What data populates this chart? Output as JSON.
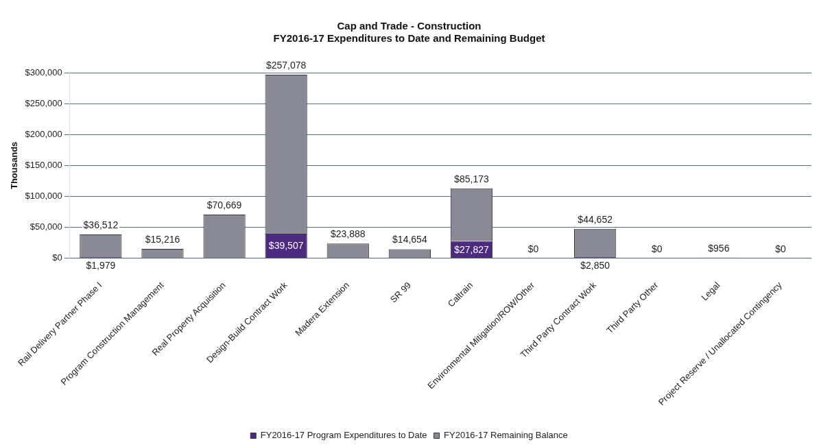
{
  "chart_data": {
    "type": "bar",
    "title": "Cap and Trade - Construction",
    "subtitle": "FY2016-17 Expenditures to Date and Remaining Budget",
    "ylabel": "Thousands",
    "categories": [
      "Rail Delivery Partner Phase I",
      "Program Construction Management",
      "Real Property Acquisition",
      "Design-Build Contract Work",
      "Madera Extension",
      "SR 99",
      "Caltrain",
      "Environmental Mitigation/ROW/Other",
      "Third Party Contract Work",
      "Third Party Other",
      "Legal",
      "Project Reserve / Unallocated Contingency"
    ],
    "stacked": true,
    "series": [
      {
        "name": "FY2016-17 Program Expenditures to Date",
        "color": "#4b2a7f",
        "values": [
          1979,
          null,
          null,
          39507,
          null,
          null,
          27827,
          null,
          2850,
          null,
          null,
          null
        ],
        "value_labels": [
          "$1,979",
          null,
          null,
          "$39,507",
          null,
          null,
          "$27,827",
          null,
          "$2,850",
          null,
          null,
          null
        ]
      },
      {
        "name": "FY2016-17 Remaining Balance",
        "color": "#8a8a96",
        "values": [
          36512,
          15216,
          70669,
          257078,
          23888,
          14654,
          85173,
          0,
          44652,
          0,
          956,
          0
        ],
        "value_labels": [
          "$36,512",
          "$15,216",
          "$70,669",
          "$257,078",
          "$23,888",
          "$14,654",
          "$85,173",
          "$0",
          "$44,652",
          "$0",
          "$956",
          "$0"
        ]
      }
    ],
    "ylim": [
      0,
      300000
    ],
    "yticks": [
      {
        "value": 0,
        "label": "$0"
      },
      {
        "value": 50000,
        "label": "$50,000"
      },
      {
        "value": 100000,
        "label": "$100,000"
      },
      {
        "value": 150000,
        "label": "$150,000"
      },
      {
        "value": 200000,
        "label": "$200,000"
      },
      {
        "value": 250000,
        "label": "$250,000"
      },
      {
        "value": 300000,
        "label": "$300,000"
      }
    ],
    "grid": "y",
    "legend": "bottom"
  }
}
